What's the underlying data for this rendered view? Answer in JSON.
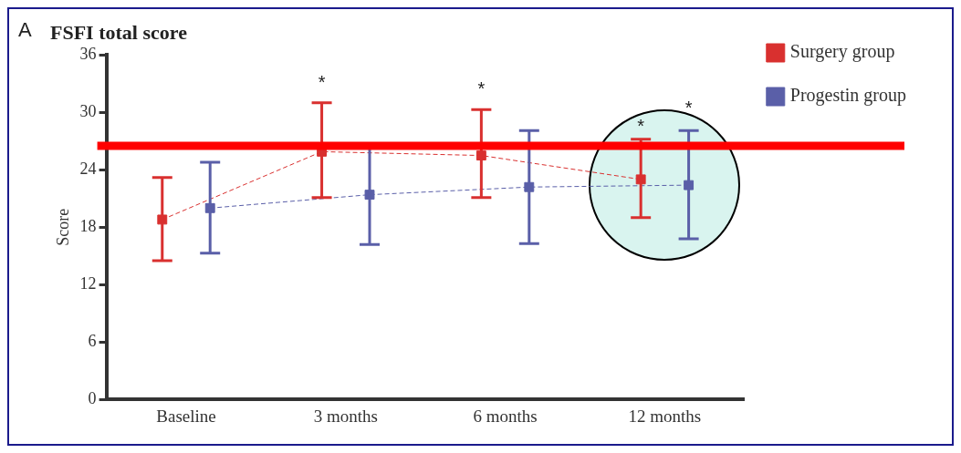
{
  "chart_data": {
    "type": "line",
    "title": "FSFI total score",
    "ylabel": "Score",
    "categories": [
      "Baseline",
      "3 months",
      "6 months",
      "12 months"
    ],
    "series": [
      {
        "name": "Surgery group",
        "color": "#d9302f",
        "values": [
          18.8,
          25.9,
          25.5,
          23.0
        ],
        "errors": [
          [
            14.5,
            23.2
          ],
          [
            21.1,
            31.0
          ],
          [
            21.1,
            30.3
          ],
          [
            19.0,
            27.2
          ]
        ]
      },
      {
        "name": "Progestin group",
        "color": "#5a5fa8",
        "values": [
          20.0,
          21.4,
          22.2,
          22.4
        ],
        "errors": [
          [
            15.3,
            24.8
          ],
          5.2,
          [
            16.3,
            28.1
          ],
          [
            16.8,
            28.1
          ]
        ]
      }
    ],
    "ylim": [
      0,
      36
    ],
    "yticks": [
      0,
      6,
      12,
      18,
      24,
      30,
      36
    ],
    "grid": false,
    "legend": "top right",
    "marker": "square",
    "line_style": "dashed",
    "ref_lines": [
      {
        "axis": "y",
        "value": 26.5,
        "color": "#ff0000"
      }
    ],
    "annotations": [
      "A",
      "*",
      "*",
      "*",
      "*"
    ]
  }
}
